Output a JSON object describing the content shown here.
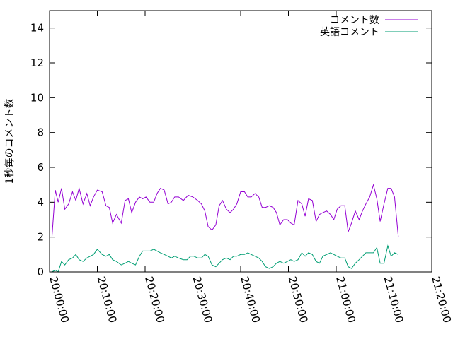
{
  "chart_data": {
    "type": "line",
    "title": "",
    "xlabel": "",
    "ylabel": "1秒毎のコメント数",
    "xlim": [
      0,
      80
    ],
    "ylim": [
      0,
      15
    ],
    "x_ticks": [
      "20:00:00",
      "20:10:00",
      "20:20:00",
      "20:30:00",
      "20:40:00",
      "20:50:00",
      "21:00:00",
      "21:10:00",
      "21:20:00"
    ],
    "y_ticks": [
      "0",
      "2",
      "4",
      "6",
      "8",
      "10",
      "12",
      "14"
    ],
    "y_tick_values": [
      0,
      2,
      4,
      6,
      8,
      10,
      12,
      14
    ],
    "grid": false,
    "legend_position": "top-right",
    "series": [
      {
        "name": "コメント数",
        "color": "#9400d3",
        "points": [
          [
            0.5,
            2.0
          ],
          [
            1.2,
            4.7
          ],
          [
            1.8,
            4.0
          ],
          [
            2.5,
            4.8
          ],
          [
            3.2,
            3.6
          ],
          [
            4,
            3.9
          ],
          [
            4.8,
            4.6
          ],
          [
            5.5,
            4.1
          ],
          [
            6.2,
            4.8
          ],
          [
            7,
            3.9
          ],
          [
            7.8,
            4.5
          ],
          [
            8.5,
            3.8
          ],
          [
            9.2,
            4.3
          ],
          [
            10,
            4.7
          ],
          [
            11,
            4.6
          ],
          [
            11.8,
            3.8
          ],
          [
            12.5,
            3.7
          ],
          [
            13.2,
            2.8
          ],
          [
            14,
            3.3
          ],
          [
            15,
            2.8
          ],
          [
            15.8,
            4.1
          ],
          [
            16.5,
            4.2
          ],
          [
            17.2,
            3.4
          ],
          [
            18,
            4.0
          ],
          [
            18.8,
            4.3
          ],
          [
            19.5,
            4.2
          ],
          [
            20.2,
            4.3
          ],
          [
            21,
            4.0
          ],
          [
            21.8,
            4.0
          ],
          [
            22.5,
            4.5
          ],
          [
            23.2,
            4.8
          ],
          [
            24,
            4.7
          ],
          [
            24.8,
            3.9
          ],
          [
            25.5,
            4.0
          ],
          [
            26.2,
            4.3
          ],
          [
            27,
            4.3
          ],
          [
            28,
            4.1
          ],
          [
            29,
            4.4
          ],
          [
            30,
            4.3
          ],
          [
            31,
            4.1
          ],
          [
            31.8,
            3.9
          ],
          [
            32.5,
            3.5
          ],
          [
            33.2,
            2.6
          ],
          [
            34,
            2.4
          ],
          [
            34.8,
            2.7
          ],
          [
            35.5,
            3.8
          ],
          [
            36.2,
            4.1
          ],
          [
            37,
            3.6
          ],
          [
            37.8,
            3.4
          ],
          [
            38.5,
            3.6
          ],
          [
            39.2,
            3.9
          ],
          [
            40,
            4.6
          ],
          [
            40.8,
            4.6
          ],
          [
            41.5,
            4.3
          ],
          [
            42.2,
            4.3
          ],
          [
            43,
            4.5
          ],
          [
            43.8,
            4.3
          ],
          [
            44.5,
            3.7
          ],
          [
            45.2,
            3.7
          ],
          [
            46,
            3.8
          ],
          [
            46.8,
            3.7
          ],
          [
            47.5,
            3.4
          ],
          [
            48.2,
            2.7
          ],
          [
            49,
            3.0
          ],
          [
            49.8,
            3.0
          ],
          [
            50.5,
            2.8
          ],
          [
            51.2,
            2.7
          ],
          [
            52,
            4.1
          ],
          [
            52.8,
            3.9
          ],
          [
            53.5,
            3.2
          ],
          [
            54.2,
            4.2
          ],
          [
            55,
            4.1
          ],
          [
            55.8,
            2.9
          ],
          [
            56.5,
            3.3
          ],
          [
            57.2,
            3.4
          ],
          [
            58,
            3.5
          ],
          [
            58.8,
            3.3
          ],
          [
            59.5,
            3.0
          ],
          [
            60.2,
            3.6
          ],
          [
            61,
            3.8
          ],
          [
            61.8,
            3.8
          ],
          [
            62.5,
            2.3
          ],
          [
            63.2,
            2.8
          ],
          [
            64,
            3.5
          ],
          [
            64.8,
            3.0
          ],
          [
            65.5,
            3.5
          ],
          [
            66.2,
            3.9
          ],
          [
            67,
            4.3
          ],
          [
            67.8,
            5.0
          ],
          [
            68.5,
            4.2
          ],
          [
            69.2,
            2.9
          ],
          [
            70,
            3.9
          ],
          [
            70.8,
            4.8
          ],
          [
            71.5,
            4.8
          ],
          [
            72.2,
            4.3
          ],
          [
            73,
            2.0
          ]
        ]
      },
      {
        "name": "英語コメント",
        "color": "#009e73",
        "points": [
          [
            0.5,
            0.0
          ],
          [
            1.2,
            0.1
          ],
          [
            1.8,
            0.0
          ],
          [
            2.5,
            0.6
          ],
          [
            3.2,
            0.4
          ],
          [
            4,
            0.7
          ],
          [
            4.8,
            0.8
          ],
          [
            5.5,
            1.0
          ],
          [
            6.2,
            0.7
          ],
          [
            7,
            0.6
          ],
          [
            7.8,
            0.8
          ],
          [
            8.5,
            0.9
          ],
          [
            9.2,
            1.0
          ],
          [
            10,
            1.3
          ],
          [
            11,
            1.0
          ],
          [
            11.8,
            0.9
          ],
          [
            12.5,
            1.0
          ],
          [
            13.2,
            0.7
          ],
          [
            14,
            0.6
          ],
          [
            15,
            0.4
          ],
          [
            15.8,
            0.5
          ],
          [
            16.5,
            0.6
          ],
          [
            17.2,
            0.5
          ],
          [
            18,
            0.4
          ],
          [
            18.8,
            0.9
          ],
          [
            19.5,
            1.2
          ],
          [
            20.2,
            1.2
          ],
          [
            21,
            1.2
          ],
          [
            21.8,
            1.3
          ],
          [
            22.5,
            1.2
          ],
          [
            23.2,
            1.1
          ],
          [
            24,
            1.0
          ],
          [
            24.8,
            0.9
          ],
          [
            25.5,
            0.8
          ],
          [
            26.2,
            0.9
          ],
          [
            27,
            0.8
          ],
          [
            28,
            0.7
          ],
          [
            28.8,
            0.7
          ],
          [
            29.5,
            0.9
          ],
          [
            30.2,
            0.9
          ],
          [
            31,
            0.8
          ],
          [
            31.8,
            0.8
          ],
          [
            32.5,
            1.0
          ],
          [
            33.2,
            0.9
          ],
          [
            34,
            0.4
          ],
          [
            34.8,
            0.3
          ],
          [
            35.5,
            0.5
          ],
          [
            36.2,
            0.7
          ],
          [
            37,
            0.8
          ],
          [
            37.8,
            0.7
          ],
          [
            38.5,
            0.9
          ],
          [
            39.2,
            0.9
          ],
          [
            40,
            1.0
          ],
          [
            40.8,
            1.0
          ],
          [
            41.5,
            1.1
          ],
          [
            42.2,
            1.0
          ],
          [
            43,
            0.9
          ],
          [
            43.8,
            0.8
          ],
          [
            44.5,
            0.6
          ],
          [
            45.2,
            0.3
          ],
          [
            46,
            0.2
          ],
          [
            46.8,
            0.3
          ],
          [
            47.5,
            0.5
          ],
          [
            48.2,
            0.6
          ],
          [
            49,
            0.5
          ],
          [
            49.8,
            0.6
          ],
          [
            50.5,
            0.7
          ],
          [
            51.2,
            0.6
          ],
          [
            52,
            0.7
          ],
          [
            52.8,
            1.1
          ],
          [
            53.5,
            0.9
          ],
          [
            54.2,
            1.1
          ],
          [
            55,
            1.0
          ],
          [
            55.8,
            0.6
          ],
          [
            56.5,
            0.5
          ],
          [
            57.2,
            0.9
          ],
          [
            58,
            1.0
          ],
          [
            58.8,
            1.1
          ],
          [
            59.5,
            1.0
          ],
          [
            60.2,
            0.9
          ],
          [
            61,
            0.8
          ],
          [
            61.8,
            0.8
          ],
          [
            62.5,
            0.3
          ],
          [
            63.2,
            0.2
          ],
          [
            64,
            0.5
          ],
          [
            64.8,
            0.7
          ],
          [
            65.5,
            0.9
          ],
          [
            66.2,
            1.1
          ],
          [
            67,
            1.1
          ],
          [
            67.8,
            1.1
          ],
          [
            68.5,
            1.4
          ],
          [
            69.2,
            0.5
          ],
          [
            70,
            0.5
          ],
          [
            70.8,
            1.5
          ],
          [
            71.5,
            0.9
          ],
          [
            72.2,
            1.1
          ],
          [
            73,
            1.0
          ]
        ]
      }
    ]
  }
}
